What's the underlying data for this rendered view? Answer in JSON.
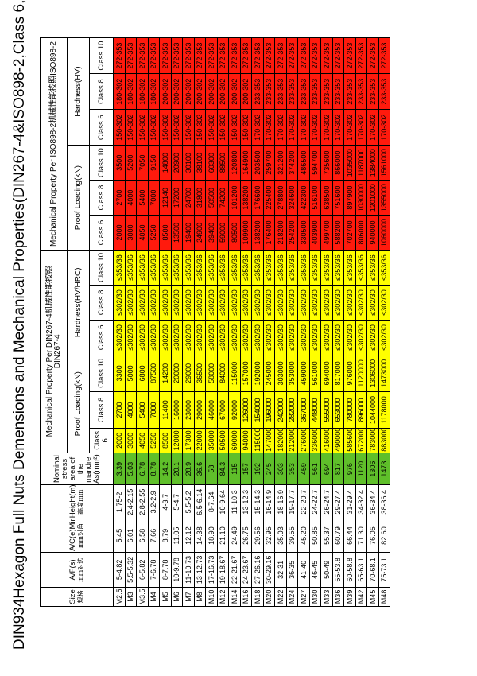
{
  "title": "DIN934Hexagon Full Nuts Demensions and Mechanical Properties(DIN267-4&ISO898-2,Class 6,Class 8,Class 10)",
  "headers": {
    "size": "Size",
    "size_cn": "规格",
    "af": "A/F(s)",
    "af_cn": "mm对边",
    "ae": "A/C(e)Min.",
    "ae_cn": "mm对角",
    "height": "Height(m)",
    "height_cn": "高度mm",
    "nominal": "Nominal stress area of the mandrel",
    "nominal_unit": "As(mm²)",
    "din_group": "Mechanical Property Per DIN267-4机械性能按照DIN267-4",
    "iso_group": "Mechanical Property Per ISO898-2机械性能按照ISO898-2",
    "proof": "Proof Loading(kN)",
    "hardness_din": "Hardness(HV/HRC)",
    "hardness_iso": "Hardness(HV)",
    "class6": "Class 6",
    "class8": "Class 8",
    "class10": "Class 10"
  },
  "rows": [
    {
      "size": "M2.5",
      "af": "5-4.82",
      "ae": "5.45",
      "m": "1.75-2",
      "as": "3.39",
      "d6": "2000",
      "d8": "2700",
      "d10": "3300",
      "h6": "≤302/30",
      "h8": "≤302/30",
      "h10": "≤353/36",
      "i6": "2000",
      "i8": "2700",
      "i10": "3500",
      "ih6": "150-302",
      "ih8": "180-302",
      "ih10": "272-353"
    },
    {
      "size": "M3",
      "af": "5.5-5.32",
      "ae": "6.01",
      "m": "2.4-2.15",
      "as": "5.03",
      "d6": "3000",
      "d8": "4000",
      "d10": "5000",
      "h6": "≤302/30",
      "h8": "≤302/30",
      "h10": "≤353/36",
      "i6": "3000",
      "i8": "4000",
      "i10": "5200",
      "ih6": "150-302",
      "ih8": "180-302",
      "ih10": "272-353"
    },
    {
      "size": "M3.5",
      "af": "6-5.82",
      "ae": "6.58",
      "m": "2.8-2.55",
      "as": "6.78",
      "d6": "4050",
      "d8": "5400",
      "d10": "6800",
      "h6": "≤302/30",
      "h8": "≤302/30",
      "h10": "≤353/36",
      "i6": "4050",
      "i8": "5400",
      "i10": "7050",
      "ih6": "150-302",
      "ih8": "180-302",
      "ih10": "272-353"
    },
    {
      "size": "M4",
      "af": "7-6.78",
      "ae": "7.66",
      "m": "3.2-2.9",
      "as": "8.78",
      "d6": "5250",
      "d8": "7000",
      "d10": "87500",
      "h6": "≤302/30",
      "h8": "≤302/30",
      "h10": "≤353/36",
      "i6": "5250",
      "i8": "7000",
      "i10": "9150",
      "ih6": "150-302",
      "ih8": "180-302",
      "ih10": "272-353"
    },
    {
      "size": "M5",
      "af": "8-7.78",
      "ae": "8.79",
      "m": "4-3.7",
      "as": "14.2",
      "d6": "8500",
      "d8": "11400",
      "d10": "14200",
      "h6": "≤302/30",
      "h8": "≤302/30",
      "h10": "≤353/36",
      "i6": "8500",
      "i8": "12140",
      "i10": "14800",
      "ih6": "150-302",
      "ih8": "200-302",
      "ih10": "272-353"
    },
    {
      "size": "M6",
      "af": "10-9.78",
      "ae": "11.05",
      "m": "5-4.7",
      "as": "20.1",
      "d6": "12000",
      "d8": "16000",
      "d10": "20000",
      "h6": "≤302/30",
      "h8": "≤302/30",
      "h10": "≤353/36",
      "i6": "13500",
      "i8": "17200",
      "i10": "20900",
      "ih6": "150-302",
      "ih8": "200-302",
      "ih10": "272-353"
    },
    {
      "size": "M7",
      "af": "11-10.73",
      "ae": "12.12",
      "m": "5.5-5.2",
      "as": "28.9",
      "d6": "17300",
      "d8": "23000",
      "d10": "29000",
      "h6": "≤302/30",
      "h8": "≤302/30",
      "h10": "≤353/36",
      "i6": "19400",
      "i8": "24700",
      "i10": "30100",
      "ih6": "150-302",
      "ih8": "200-302",
      "ih10": "272-353"
    },
    {
      "size": "M8",
      "af": "13-12.73",
      "ae": "14.38",
      "m": "6.5-6.14",
      "as": "36.6",
      "d6": "22000",
      "d8": "29000",
      "d10": "36500",
      "h6": "≤302/30",
      "h8": "≤302/30",
      "h10": "≤353/36",
      "i6": "24900",
      "i8": "31800",
      "i10": "38100",
      "ih6": "150-302",
      "ih8": "200-302",
      "ih10": "272-353"
    },
    {
      "size": "M10",
      "af": "17-16.73",
      "ae": "18.90",
      "m": "8-7.64",
      "as": "58",
      "d6": "35000",
      "d8": "46000",
      "d10": "58000",
      "h6": "≤302/30",
      "h8": "≤302/30",
      "h10": "≤353/36",
      "i6": "39400",
      "i8": "50500",
      "i10": "60300",
      "ih6": "150-302",
      "ih8": "200-302",
      "ih10": "272-353"
    },
    {
      "size": "M12",
      "af": "19-18.67",
      "ae": "21.10",
      "m": "10-9.64",
      "as": "84.3",
      "d6": "50500",
      "d8": "67000",
      "d10": "84000",
      "h6": "≤302/30",
      "h8": "≤302/30",
      "h10": "≤353/36",
      "i6": "59000",
      "i8": "74200",
      "i10": "88500",
      "ih6": "150-302",
      "ih8": "200-302",
      "ih10": "272-353"
    },
    {
      "size": "M14",
      "af": "22-21.67",
      "ae": "24.49",
      "m": "11-10.3",
      "as": "115",
      "d6": "69000",
      "d8": "92000",
      "d10": "115000",
      "h6": "≤302/30",
      "h8": "≤302/30",
      "h10": "≤353/36",
      "i6": "80500",
      "i8": "101200",
      "i10": "120800",
      "ih6": "150-302",
      "ih8": "200-302",
      "ih10": "272-353"
    },
    {
      "size": "M16",
      "af": "24-23.67",
      "ae": "26.75",
      "m": "13-12.3",
      "as": "157",
      "d6": "94000",
      "d8": "126000",
      "d10": "157000",
      "h6": "≤302/30",
      "h8": "≤302/30",
      "h10": "≤353/36",
      "i6": "109900",
      "i8": "138200",
      "i10": "164900",
      "ih6": "150-302",
      "ih8": "200-302",
      "ih10": "272-353"
    },
    {
      "size": "M18",
      "af": "27-26.16",
      "ae": "29.56",
      "m": "15-14.3",
      "as": "192",
      "d6": "115000",
      "d8": "154000",
      "d10": "192000",
      "h6": "≤302/30",
      "h8": "≤302/30",
      "h10": "≤353/36",
      "i6": "138200",
      "i8": "176600",
      "i10": "203500",
      "ih6": "170-302",
      "ih8": "233-353",
      "ih10": "272-353"
    },
    {
      "size": "M20",
      "af": "30-29.16",
      "ae": "32.95",
      "m": "16-14.9",
      "as": "245",
      "d6": "147000",
      "d8": "196000",
      "d10": "245000",
      "h6": "≤302/30",
      "h8": "≤302/30",
      "h10": "≤353/36",
      "i6": "176400",
      "i8": "225400",
      "i10": "259700",
      "ih6": "170-302",
      "ih8": "233-353",
      "ih10": "272-353"
    },
    {
      "size": "M22",
      "af": "32-31",
      "ae": "35.03",
      "m": "18-16.9",
      "as": "303",
      "d6": "182000",
      "d8": "242000",
      "d10": "303000",
      "h6": "≤302/30",
      "h8": "≤302/30",
      "h10": "≤353/36",
      "i6": "218200",
      "i8": "278800",
      "i10": "321200",
      "ih6": "170-302",
      "ih8": "233-353",
      "ih10": "272-353"
    },
    {
      "size": "M24",
      "af": "36-35",
      "ae": "39.55",
      "m": "19-17.7",
      "as": "353",
      "d6": "212000",
      "d8": "282000",
      "d10": "353000",
      "h6": "≤302/30",
      "h8": "≤302/30",
      "h10": "≤353/36",
      "i6": "254200",
      "i8": "324600",
      "i10": "374200",
      "ih6": "170-302",
      "ih8": "233-353",
      "ih10": "272-353"
    },
    {
      "size": "M27",
      "af": "41-40",
      "ae": "45.20",
      "m": "22-20.7",
      "as": "459",
      "d6": "276000",
      "d8": "367000",
      "d10": "459000",
      "h6": "≤302/30",
      "h8": "≤302/30",
      "h10": "≤353/36",
      "i6": "330500",
      "i8": "422300",
      "i10": "486500",
      "ih6": "170-302",
      "ih8": "233-353",
      "ih10": "272-353"
    },
    {
      "size": "M30",
      "af": "46-45",
      "ae": "50.85",
      "m": "24-22.7",
      "as": "561",
      "d6": "336000",
      "d8": "448000",
      "d10": "561000",
      "h6": "≤302/30",
      "h8": "≤302/30",
      "h10": "≤353/36",
      "i6": "403900",
      "i8": "516100",
      "i10": "594700",
      "ih6": "170-302",
      "ih8": "233-353",
      "ih10": "272-353"
    },
    {
      "size": "M33",
      "af": "50-49",
      "ae": "55.37",
      "m": "26-24.7",
      "as": "694",
      "d6": "416000",
      "d8": "555000",
      "d10": "694000",
      "h6": "≤302/30",
      "h8": "≤302/30",
      "h10": "≤353/36",
      "i6": "499700",
      "i8": "638500",
      "i10": "735600",
      "ih6": "170-302",
      "ih8": "233-353",
      "ih10": "272-353"
    },
    {
      "size": "M36",
      "af": "55-53.8",
      "ae": "60.79",
      "m": "29-27.4",
      "as": "817",
      "d6": "490000",
      "d8": "653000",
      "d10": "817000",
      "h6": "≤302/30",
      "h8": "≤302/30",
      "h10": "≤353/36",
      "i6": "588200",
      "i8": "751600",
      "i10": "866000",
      "ih6": "170-302",
      "ih8": "233-353",
      "ih10": "272-353"
    },
    {
      "size": "M39",
      "af": "60-58.8",
      "ae": "66.44",
      "m": "31-29.4",
      "as": "976",
      "d6": "585600",
      "d8": "780000",
      "d10": "976000",
      "h6": "≤302/30",
      "h8": "≤302/30",
      "h10": "≤353/36",
      "i6": "702700",
      "i8": "897900",
      "i10": "1035000",
      "ih6": "170-302",
      "ih8": "233-353",
      "ih10": "272-353"
    },
    {
      "size": "M42",
      "af": "65-63.1",
      "ae": "71.30",
      "m": "34-32.4",
      "as": "1120",
      "d6": "672000",
      "d8": "896000",
      "d10": "1120000",
      "h6": "≤302/30",
      "h8": "≤302/30",
      "h10": "≤353/36",
      "i6": "806000",
      "i8": "1030000",
      "i10": "1187000",
      "ih6": "170-302",
      "ih8": "233-353",
      "ih10": "272-353"
    },
    {
      "size": "M45",
      "af": "70-68.1",
      "ae": "76.05",
      "m": "36-34.4",
      "as": "1306",
      "d6": "783000",
      "d8": "1044000",
      "d10": "1306000",
      "h6": "≤302/30",
      "h8": "≤302/30",
      "h10": "≤353/36",
      "i6": "940000",
      "i8": "1201000",
      "i10": "1384000",
      "ih6": "170-302",
      "ih8": "233-353",
      "ih10": "272-353"
    },
    {
      "size": "M48",
      "af": "75-73.1",
      "ae": "82.60",
      "m": "38-36.4",
      "as": "1473",
      "d6": "883000",
      "d8": "1178000",
      "d10": "1473000",
      "h6": "≤302/30",
      "h8": "≤302/30",
      "h10": "≤353/36",
      "i6": "1060000",
      "i8": "1355000",
      "i10": "1561000",
      "ih6": "170-302",
      "ih8": "233-353",
      "ih10": "272-353"
    }
  ]
}
